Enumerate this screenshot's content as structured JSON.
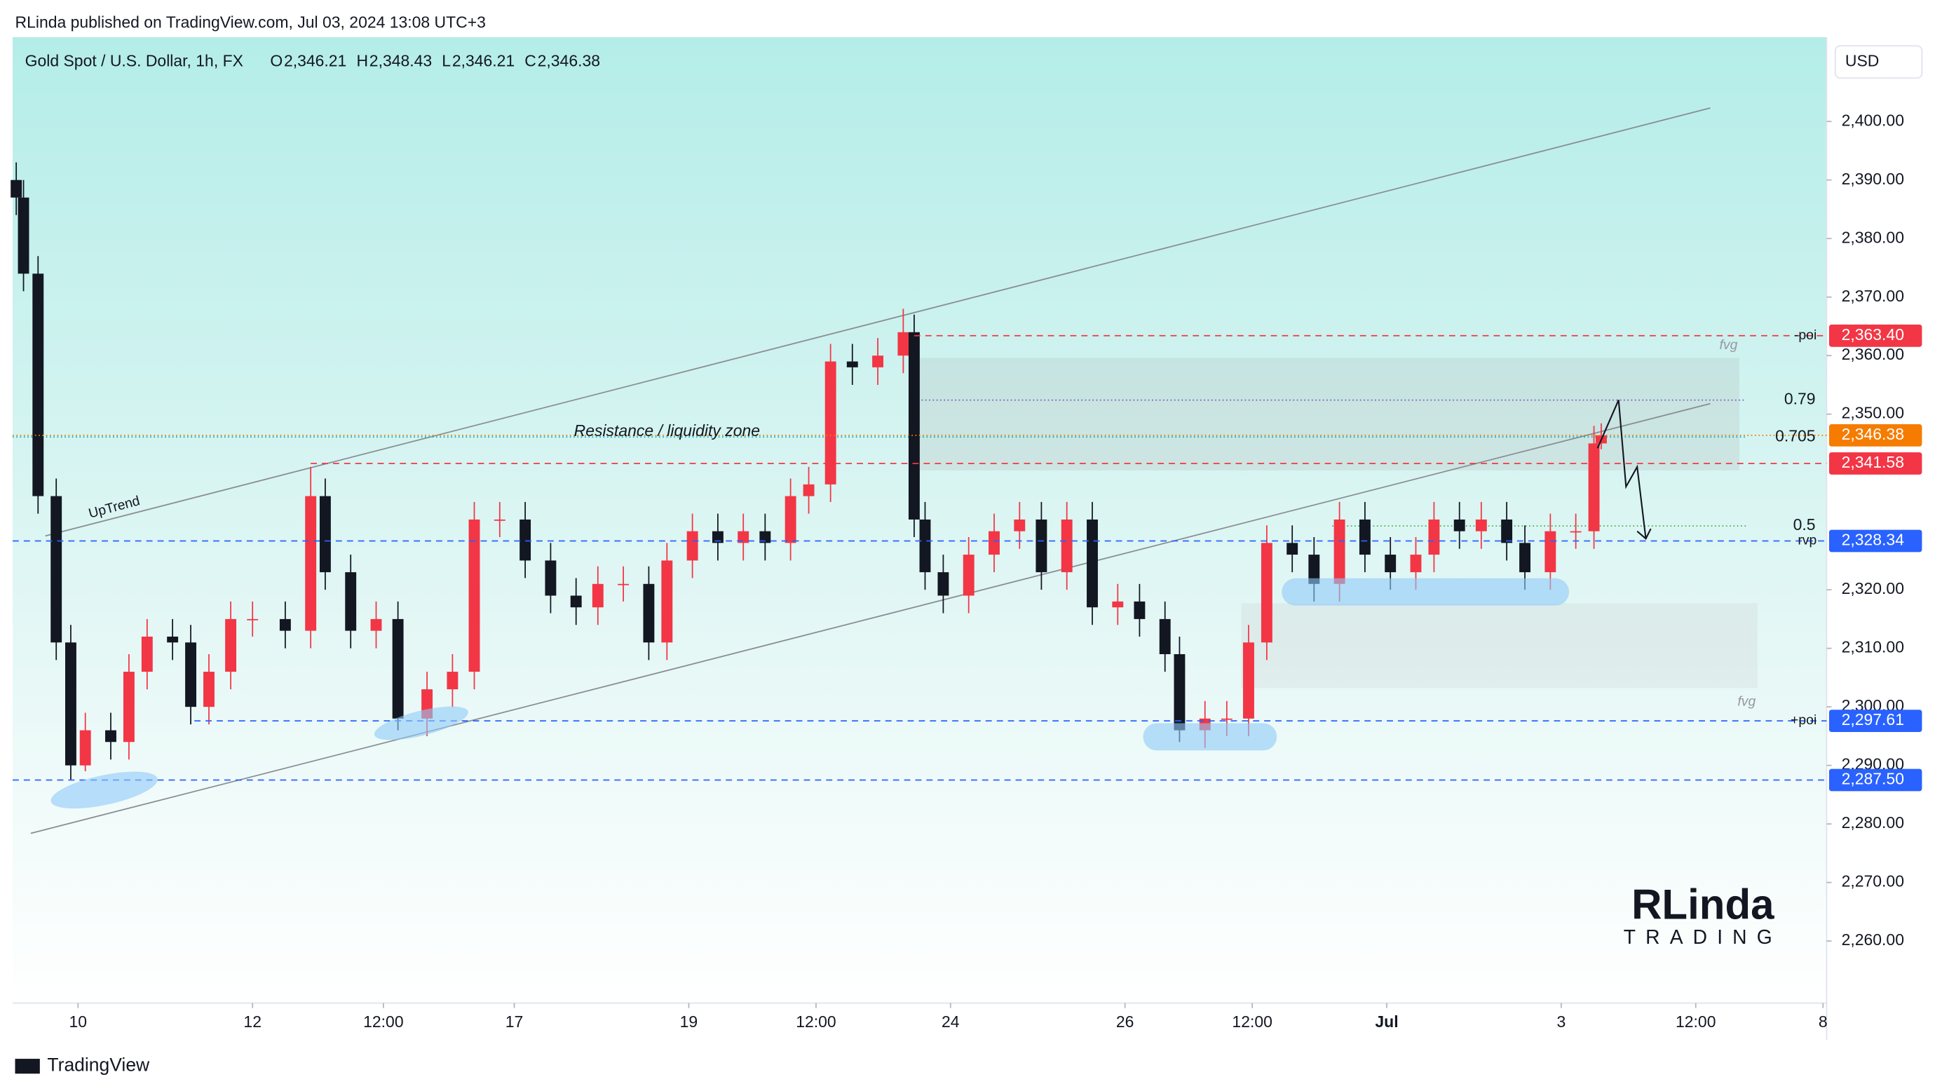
{
  "header": {
    "publisher": "RLinda published on TradingView.com, Jul 03, 2024 13:08 UTC+3",
    "footer": "TradingView",
    "currency": "USD",
    "watermark": [
      "RLinda",
      "TRADING"
    ]
  },
  "chart_data": {
    "type": "candlestick",
    "title": "Gold Spot / U.S. Dollar, 1h, FX",
    "ohlc_header": [
      {
        "label": "O",
        "value": "2,346.21"
      },
      {
        "label": "H",
        "value": "2,348.43"
      },
      {
        "label": "L",
        "value": "2,346.21"
      },
      {
        "label": "C",
        "value": "2,346.38"
      }
    ],
    "up_color": "#f23645",
    "down_color": "#131722",
    "x": [
      -17,
      -15,
      -11,
      -6,
      -2,
      2,
      9,
      14,
      19,
      26,
      31,
      36,
      42,
      48,
      57,
      64,
      68,
      75,
      82,
      88,
      96,
      103,
      109,
      116,
      123,
      130,
      137,
      143,
      150,
      157,
      162,
      169,
      176,
      183,
      189,
      196,
      201,
      207,
      213,
      220,
      227,
      230,
      233,
      238,
      245,
      252,
      259,
      265,
      272,
      279,
      286,
      292,
      299,
      303,
      310,
      316,
      322,
      327,
      334,
      340,
      347,
      354,
      361,
      368,
      373,
      380,
      386,
      393,
      398,
      405,
      412,
      417,
      419
    ],
    "open": [
      2390,
      2387,
      2374,
      2336,
      2311,
      2290,
      2296,
      2294,
      2306,
      2312,
      2311,
      2300,
      2306,
      2315,
      2315,
      2313,
      2336,
      2323,
      2313,
      2315,
      2298,
      2303,
      2306,
      2332,
      2332,
      2325,
      2319,
      2317,
      2321,
      2321,
      2311,
      2325,
      2330,
      2328,
      2330,
      2328,
      2336,
      2338,
      2359,
      2358,
      2360,
      2364,
      2332,
      2323,
      2319,
      2326,
      2330,
      2332,
      2323,
      2332,
      2317,
      2318,
      2315,
      2309,
      2296,
      2298,
      2298,
      2311,
      2328,
      2326,
      2321,
      2332,
      2326,
      2323,
      2326,
      2332,
      2330,
      2332,
      2328,
      2323,
      2330,
      2330,
      2345
    ],
    "high": [
      2393,
      2390,
      2377,
      2339,
      2314,
      2299,
      2299,
      2309,
      2315,
      2315,
      2314,
      2309,
      2318,
      2318,
      2318,
      2341,
      2339,
      2326,
      2318,
      2318,
      2306,
      2309,
      2335,
      2335,
      2335,
      2328,
      2322,
      2324,
      2324,
      2324,
      2328,
      2333,
      2333,
      2333,
      2333,
      2339,
      2341,
      2362,
      2362,
      2363,
      2368,
      2367,
      2335,
      2326,
      2329,
      2333,
      2335,
      2335,
      2335,
      2335,
      2321,
      2321,
      2318,
      2312,
      2301,
      2301,
      2314,
      2331,
      2331,
      2329,
      2335,
      2335,
      2329,
      2329,
      2335,
      2335,
      2335,
      2335,
      2331,
      2333,
      2333,
      2348,
      2348.43
    ],
    "low": [
      2384,
      2371,
      2333,
      2308,
      2287.5,
      2289,
      2291,
      2291,
      2303,
      2308,
      2297,
      2297,
      2303,
      2312,
      2310,
      2310,
      2320,
      2310,
      2310,
      2296,
      2295,
      2300,
      2303,
      2329,
      2322,
      2316,
      2314,
      2314,
      2318,
      2308,
      2308,
      2322,
      2325,
      2325,
      2325,
      2325,
      2333,
      2335,
      2355,
      2355,
      2357,
      2329,
      2320,
      2316,
      2316,
      2323,
      2327,
      2320,
      2320,
      2314,
      2314,
      2312,
      2306,
      2294,
      2293,
      2295,
      2295,
      2308,
      2323,
      2318,
      2318,
      2323,
      2320,
      2320,
      2323,
      2327,
      2327,
      2325,
      2320,
      2320,
      2327,
      2327,
      2344
    ],
    "close": [
      2387,
      2374,
      2336,
      2311,
      2290,
      2296,
      2294,
      2306,
      2312,
      2311,
      2300,
      2306,
      2315,
      2315,
      2313,
      2336,
      2323,
      2313,
      2315,
      2298,
      2303,
      2306,
      2332,
      2332,
      2325,
      2319,
      2317,
      2321,
      2321,
      2311,
      2325,
      2330,
      2328,
      2330,
      2328,
      2336,
      2338,
      2359,
      2358,
      2360,
      2364,
      2332,
      2323,
      2319,
      2326,
      2330,
      2332,
      2323,
      2332,
      2317,
      2318,
      2315,
      2309,
      2296,
      2298,
      2298,
      2311,
      2328,
      2326,
      2321,
      2332,
      2326,
      2323,
      2326,
      2332,
      2330,
      2332,
      2328,
      2323,
      2330,
      2330,
      2345,
      2346.38
    ],
    "xlim": [
      -18,
      481
    ],
    "xticks": [
      {
        "value": 0,
        "label": "10"
      },
      {
        "value": 48,
        "label": "12"
      },
      {
        "value": 84,
        "label": "12:00"
      },
      {
        "value": 120,
        "label": "17"
      },
      {
        "value": 168,
        "label": "19"
      },
      {
        "value": 203,
        "label": "12:00"
      },
      {
        "value": 240,
        "label": "24"
      },
      {
        "value": 288,
        "label": "26"
      },
      {
        "value": 323,
        "label": "12:00"
      },
      {
        "value": 360,
        "label": "Jul"
      },
      {
        "value": 408,
        "label": "3"
      },
      {
        "value": 445,
        "label": "12:00"
      },
      {
        "value": 480,
        "label": "8"
      }
    ],
    "ylim": [
      2249.4,
      2414.4
    ],
    "yticks": [
      {
        "value": 2260,
        "label": "2,260.00"
      },
      {
        "value": 2270,
        "label": "2,270.00"
      },
      {
        "value": 2280,
        "label": "2,280.00"
      },
      {
        "value": 2290,
        "label": "2,290.00"
      },
      {
        "value": 2300,
        "label": "2,300.00"
      },
      {
        "value": 2310,
        "label": "2,310.00"
      },
      {
        "value": 2320,
        "label": "2,320.00"
      },
      {
        "value": 2350,
        "label": "2,350.00"
      },
      {
        "value": 2360,
        "label": "2,360.00"
      },
      {
        "value": 2370,
        "label": "2,370.00"
      },
      {
        "value": 2380,
        "label": "2,380.00"
      },
      {
        "value": 2390,
        "label": "2,390.00"
      },
      {
        "value": 2400,
        "label": "2,400.00"
      }
    ],
    "price_levels": [
      {
        "value": 2363.4,
        "label": "2,363.40",
        "tag": "-poi",
        "color": "#f23645",
        "start": 230
      },
      {
        "value": 2346.38,
        "label": "2,346.38",
        "color": "#f57c00",
        "start": -18
      },
      {
        "value": 2341.58,
        "label": "2,341.58",
        "color": "#f23645",
        "start": 64
      },
      {
        "value": 2328.34,
        "label": "2,328.34",
        "tag": "rvp",
        "color": "#2962ff",
        "start": -18
      },
      {
        "value": 2297.61,
        "label": "2,297.61",
        "tag": "+poi",
        "color": "#2962ff",
        "start": 32
      },
      {
        "value": 2287.5,
        "label": "2,287.50",
        "color": "#2962ff",
        "start": -18
      }
    ],
    "fib_levels": [
      {
        "value": 2352.4,
        "label": "0.79",
        "color": "#7e57c2",
        "start": 230
      },
      {
        "value": 2346.1,
        "label": "0.705",
        "color": "#00acc1",
        "start": -18
      },
      {
        "value": 2330.9,
        "label": "0.5",
        "color": "#4caf50",
        "start": 345
      }
    ],
    "zones": [
      {
        "x": [
          230,
          457
        ],
        "y": [
          2340.4,
          2359.6
        ],
        "color": "#9e9e9e"
      },
      {
        "x": [
          320,
          462
        ],
        "y": [
          2303.2,
          2317.7
        ],
        "color": "#bdbdbd"
      }
    ],
    "trendlines": [
      {
        "x": [
          -9,
          449
        ],
        "y": [
          2329.2,
          2402.3
        ]
      },
      {
        "x": [
          -13,
          449
        ],
        "y": [
          2278.4,
          2351.8
        ]
      }
    ],
    "annotations": [
      {
        "text": "Resistance / liquidity zone",
        "x": 162,
        "y": 2347,
        "italic": true
      },
      {
        "text": "UpTrend",
        "x": 10,
        "y": 2334,
        "rotate": -15
      },
      {
        "text": "fvg",
        "x": 454,
        "y": 2361.7,
        "muted": true
      },
      {
        "text": "fvg",
        "x": 459,
        "y": 2300.8,
        "muted": true
      }
    ]
  }
}
